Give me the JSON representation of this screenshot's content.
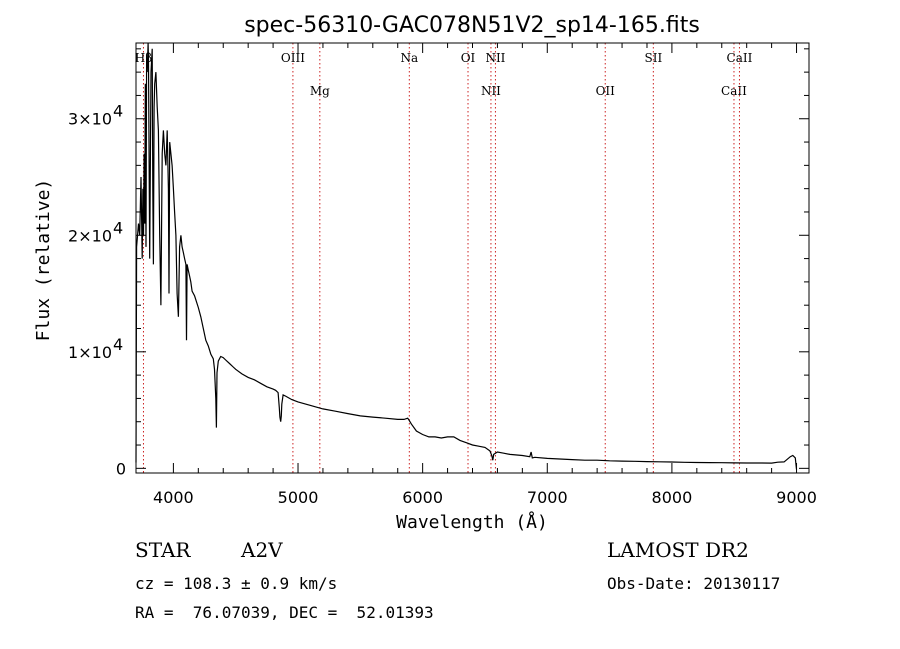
{
  "chart_data": {
    "type": "line",
    "title": "spec-56310-GAC078N51V2_sp14-165.fits",
    "xlabel": "Wavelength (Å)",
    "ylabel": "Flux (relative)",
    "xlim": [
      3700,
      9100
    ],
    "ylim": [
      -400,
      36500
    ],
    "x_ticks": [
      {
        "value": 4000,
        "label": "4000"
      },
      {
        "value": 5000,
        "label": "5000"
      },
      {
        "value": 6000,
        "label": "6000"
      },
      {
        "value": 7000,
        "label": "7000"
      },
      {
        "value": 8000,
        "label": "8000"
      },
      {
        "value": 9000,
        "label": "9000"
      }
    ],
    "y_ticks": [
      {
        "value": 0,
        "label": "0",
        "exp": ""
      },
      {
        "value": 10000,
        "label": "1×10",
        "exp": "4"
      },
      {
        "value": 20000,
        "label": "2×10",
        "exp": "4"
      },
      {
        "value": 30000,
        "label": "3×10",
        "exp": "4"
      }
    ],
    "spectral_lines": [
      {
        "name": "Hβ",
        "wavelength": 3760,
        "row": 0
      },
      {
        "name": "OIII",
        "wavelength": 4959,
        "row": 0
      },
      {
        "name": "Mg",
        "wavelength": 5175,
        "row": 1
      },
      {
        "name": "Na",
        "wavelength": 5893,
        "row": 0
      },
      {
        "name": "OI",
        "wavelength": 6364,
        "row": 0
      },
      {
        "name": "NII",
        "wavelength": 6548,
        "row": 1
      },
      {
        "name": "NII",
        "wavelength": 6584,
        "row": 0
      },
      {
        "name": "OII",
        "wavelength": 7465,
        "row": 1
      },
      {
        "name": "SII",
        "wavelength": 7851,
        "row": 0
      },
      {
        "name": "CaII",
        "wavelength": 8498,
        "row": 1
      },
      {
        "name": "CaII",
        "wavelength": 8542,
        "row": 0
      }
    ],
    "series": [
      {
        "name": "flux",
        "x": [
          3700,
          3705,
          3720,
          3730,
          3740,
          3750,
          3755,
          3760,
          3765,
          3770,
          3775,
          3780,
          3785,
          3790,
          3797,
          3800,
          3810,
          3820,
          3830,
          3835,
          3840,
          3845,
          3850,
          3860,
          3870,
          3880,
          3890,
          3900,
          3910,
          3920,
          3930,
          3940,
          3950,
          3960,
          3965,
          3970,
          3975,
          3980,
          3990,
          4000,
          4010,
          4020,
          4030,
          4040,
          4050,
          4060,
          4070,
          4080,
          4090,
          4100,
          4105,
          4110,
          4120,
          4130,
          4140,
          4150,
          4170,
          4200,
          4220,
          4240,
          4260,
          4280,
          4300,
          4320,
          4330,
          4340,
          4345,
          4350,
          4360,
          4380,
          4400,
          4420,
          4450,
          4480,
          4500,
          4550,
          4600,
          4650,
          4700,
          4750,
          4800,
          4820,
          4840,
          4850,
          4855,
          4861,
          4866,
          4870,
          4880,
          4900,
          4950,
          5000,
          5100,
          5200,
          5300,
          5400,
          5500,
          5600,
          5700,
          5800,
          5850,
          5880,
          5893,
          5910,
          5950,
          6000,
          6050,
          6100,
          6150,
          6200,
          6250,
          6300,
          6350,
          6400,
          6450,
          6500,
          6540,
          6555,
          6563,
          6570,
          6600,
          6650,
          6700,
          6800,
          6860,
          6870,
          6880,
          6900,
          7000,
          7100,
          7200,
          7300,
          7400,
          7500,
          7600,
          7700,
          7800,
          7900,
          8000,
          8100,
          8200,
          8300,
          8400,
          8500,
          8600,
          8700,
          8800,
          8850,
          8900,
          8950,
          8970,
          8990,
          9000
        ],
        "y": [
          500,
          19000,
          21000,
          20000,
          25000,
          18000,
          24000,
          20000,
          27000,
          21000,
          33000,
          19000,
          35000,
          34000,
          36500,
          35000,
          18000,
          34000,
          36000,
          24000,
          17500,
          31000,
          33000,
          34000,
          31000,
          29000,
          20000,
          14000,
          27000,
          29000,
          27000,
          26000,
          29000,
          24000,
          15000,
          28000,
          27500,
          27000,
          26000,
          24000,
          22000,
          20000,
          15000,
          13000,
          19000,
          20000,
          19000,
          18500,
          18000,
          17500,
          11000,
          17500,
          17000,
          16500,
          16000,
          15200,
          14800,
          13800,
          13000,
          12000,
          11000,
          10500,
          9800,
          9400,
          8500,
          6000,
          3500,
          8200,
          9200,
          9600,
          9500,
          9300,
          9000,
          8700,
          8500,
          8100,
          7800,
          7600,
          7300,
          7000,
          6800,
          6700,
          6500,
          5200,
          4400,
          4000,
          4500,
          5500,
          6300,
          6200,
          5900,
          5700,
          5400,
          5100,
          4900,
          4700,
          4500,
          4400,
          4300,
          4200,
          4200,
          4300,
          4100,
          3800,
          3200,
          2900,
          2700,
          2700,
          2600,
          2700,
          2700,
          2400,
          2200,
          2000,
          1900,
          1800,
          1500,
          1100,
          700,
          1200,
          1400,
          1300,
          1200,
          1100,
          1000,
          1400,
          900,
          950,
          850,
          800,
          750,
          700,
          700,
          650,
          620,
          600,
          580,
          560,
          540,
          520,
          500,
          490,
          480,
          470,
          460,
          460,
          450,
          530,
          550,
          1000,
          1100,
          900,
          -100
        ]
      }
    ]
  },
  "info": {
    "object_class": "STAR",
    "subclass": "A2V",
    "survey": "LAMOST DR2",
    "cz": "cz = 108.3 ± 0.9 km/s",
    "obs_date": "Obs-Date: 20130117",
    "coords": "RA =  76.07039, DEC =  52.01393"
  },
  "colors": {
    "axis": "#000000",
    "spectrum": "#000000",
    "line_marker": "#cc2222"
  }
}
